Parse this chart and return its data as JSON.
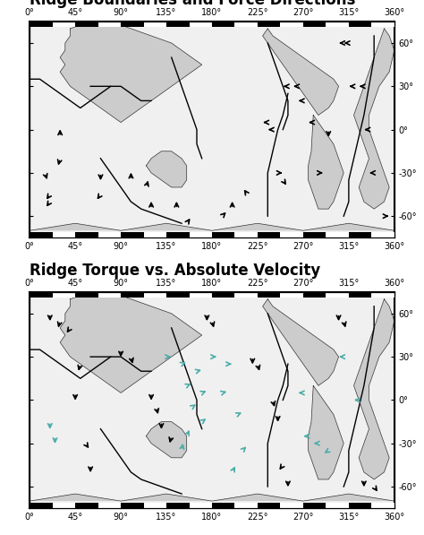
{
  "title1": "Ridge Boundaries and Force Directions",
  "title2": "Ridge Torque vs. Absolute Velocity",
  "lon_ticks": [
    0,
    45,
    90,
    135,
    180,
    225,
    270,
    315,
    360
  ],
  "lat_ticks": [
    60,
    30,
    0,
    -30,
    -60
  ],
  "lon_labels": [
    "0°",
    "45°",
    "90°",
    "135°",
    "180°",
    "225°",
    "270°",
    "315°",
    "360°"
  ],
  "lat_labels_right1": [
    "60°",
    "30°",
    "0°",
    "-30°",
    "-60°"
  ],
  "xlim": [
    0,
    360
  ],
  "ylim": [
    -75,
    75
  ],
  "background": "#ffffff",
  "map_bg": "#e8e8e8",
  "border_color": "#000000",
  "arrow_color1": "#000000",
  "arrow_color2_teal": "#4aada8",
  "arrow_color2_black": "#000000",
  "arrows1": [
    [
      20,
      -50,
      -1,
      -1
    ],
    [
      20,
      -45,
      -1,
      -1
    ],
    [
      15,
      -30,
      0.5,
      -1
    ],
    [
      30,
      -5,
      0,
      1
    ],
    [
      30,
      -20,
      -0.3,
      -0.8
    ],
    [
      70,
      -30,
      0,
      -1
    ],
    [
      70,
      -45,
      -0.5,
      -0.5
    ],
    [
      100,
      -35,
      0,
      1
    ],
    [
      115,
      -40,
      0.3,
      0.7
    ],
    [
      120,
      -55,
      0,
      1
    ],
    [
      145,
      -55,
      0,
      1
    ],
    [
      155,
      -65,
      0.5,
      0.5
    ],
    [
      190,
      -60,
      0.7,
      0.5
    ],
    [
      200,
      -55,
      0,
      1
    ],
    [
      215,
      -45,
      -0.5,
      0.5
    ],
    [
      235,
      5,
      -1,
      0
    ],
    [
      240,
      0,
      -1,
      0
    ],
    [
      245,
      -30,
      1,
      0
    ],
    [
      250,
      -35,
      0.5,
      -0.5
    ],
    [
      255,
      30,
      -1,
      0
    ],
    [
      265,
      30,
      -1,
      0
    ],
    [
      270,
      20,
      -1,
      0
    ],
    [
      280,
      5,
      -1,
      0
    ],
    [
      285,
      -30,
      1,
      0
    ],
    [
      295,
      0,
      0,
      -1
    ],
    [
      310,
      60,
      -1,
      0
    ],
    [
      315,
      60,
      -1,
      0
    ],
    [
      320,
      30,
      -1,
      0
    ],
    [
      330,
      30,
      -1,
      0
    ],
    [
      335,
      0,
      -1,
      0
    ],
    [
      340,
      -30,
      -1,
      0
    ],
    [
      350,
      -60,
      1,
      0
    ]
  ],
  "arrows2_teal": [
    [
      135,
      30,
      1,
      0
    ],
    [
      150,
      25,
      1,
      0.3
    ],
    [
      165,
      20,
      1,
      0.2
    ],
    [
      155,
      10,
      1,
      0.3
    ],
    [
      170,
      5,
      1,
      0.3
    ],
    [
      160,
      -5,
      1,
      0.5
    ],
    [
      170,
      -15,
      1,
      0.5
    ],
    [
      155,
      -25,
      0.5,
      0.8
    ],
    [
      150,
      -35,
      0.3,
      1
    ],
    [
      180,
      30,
      1,
      0
    ],
    [
      195,
      25,
      1,
      0
    ],
    [
      190,
      5,
      1,
      0.2
    ],
    [
      205,
      -10,
      1,
      0.3
    ],
    [
      210,
      -35,
      0.7,
      0.5
    ],
    [
      200,
      -50,
      0.5,
      0.7
    ],
    [
      270,
      5,
      -1,
      0
    ],
    [
      275,
      -25,
      -1,
      0
    ],
    [
      285,
      -30,
      -1,
      0
    ],
    [
      295,
      -35,
      -0.7,
      -0.3
    ],
    [
      20,
      -15,
      0,
      -1
    ],
    [
      25,
      -25,
      0,
      -0.8
    ],
    [
      310,
      30,
      -1,
      0
    ],
    [
      325,
      0,
      -1,
      0
    ]
  ],
  "arrows2_black": [
    [
      20,
      60,
      0,
      -1
    ],
    [
      30,
      55,
      -0.3,
      -0.8
    ],
    [
      40,
      50,
      -0.5,
      -0.5
    ],
    [
      50,
      25,
      -0.3,
      -0.8
    ],
    [
      45,
      5,
      0,
      -1
    ],
    [
      55,
      -30,
      0.5,
      -0.5
    ],
    [
      60,
      -45,
      0,
      -1
    ],
    [
      90,
      35,
      0,
      -1
    ],
    [
      100,
      30,
      0.3,
      -0.8
    ],
    [
      120,
      5,
      0,
      -1
    ],
    [
      125,
      -5,
      0.3,
      -0.8
    ],
    [
      130,
      -15,
      0,
      -1
    ],
    [
      140,
      -25,
      -0.3,
      -0.8
    ],
    [
      175,
      60,
      0,
      -1
    ],
    [
      180,
      55,
      0.3,
      -0.8
    ],
    [
      220,
      30,
      0,
      -1
    ],
    [
      225,
      25,
      0.3,
      -0.8
    ],
    [
      240,
      0,
      0.3,
      -0.8
    ],
    [
      245,
      -10,
      0,
      -1
    ],
    [
      250,
      -45,
      -0.5,
      -0.5
    ],
    [
      255,
      -55,
      0,
      -1
    ],
    [
      305,
      60,
      0,
      -1
    ],
    [
      310,
      55,
      0.3,
      -0.8
    ],
    [
      330,
      -55,
      0,
      -1
    ],
    [
      340,
      -60,
      0.5,
      -0.5
    ]
  ],
  "title_fontsize": 12,
  "tick_fontsize": 7,
  "figsize": [
    4.74,
    5.97
  ],
  "dpi": 100
}
